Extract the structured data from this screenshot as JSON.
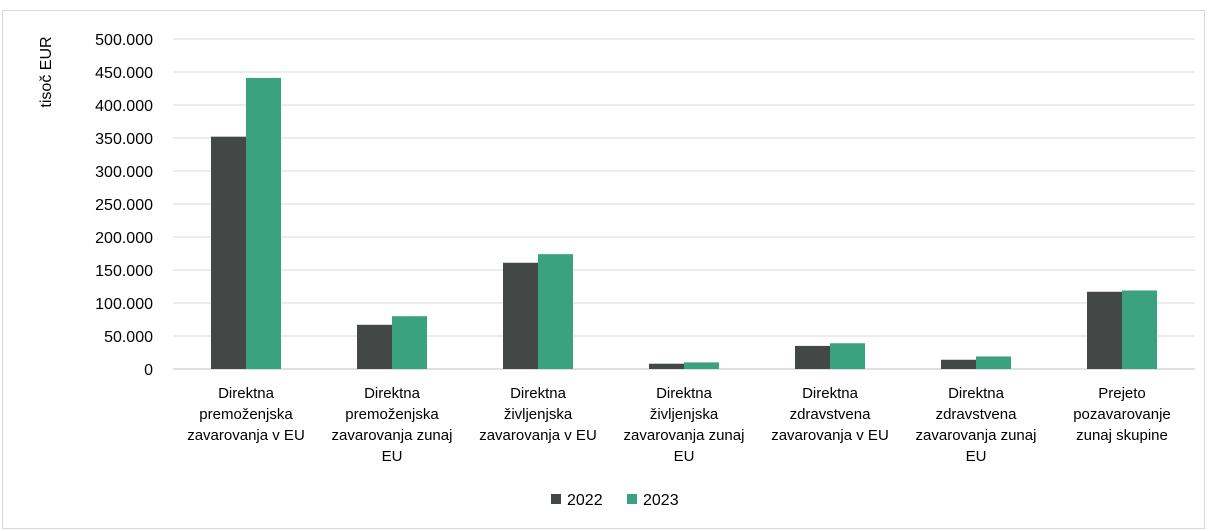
{
  "chart_data": {
    "type": "bar",
    "ylabel": "tisoč EUR",
    "xlabel": "",
    "ylim": [
      0,
      500000
    ],
    "y_ticks": [
      0,
      50000,
      100000,
      150000,
      200000,
      250000,
      300000,
      350000,
      400000,
      450000,
      500000
    ],
    "y_tick_labels": [
      "0",
      "50.000",
      "100.000",
      "150.000",
      "200.000",
      "250.000",
      "300.000",
      "350.000",
      "400.000",
      "450.000",
      "500.000"
    ],
    "grid": true,
    "legend_position": "bottom",
    "categories": [
      [
        "Direktna",
        "premoženjska",
        "zavarovanja v EU"
      ],
      [
        "Direktna",
        "premoženjska",
        "zavarovanja zunaj",
        "EU"
      ],
      [
        "Direktna",
        "življenjska",
        "zavarovanja v EU"
      ],
      [
        "Direktna",
        "življenjska",
        "zavarovanja zunaj",
        "EU"
      ],
      [
        "Direktna",
        "zdravstvena",
        "zavarovanja v EU"
      ],
      [
        "Direktna",
        "zdravstvena",
        "zavarovanja zunaj",
        "EU"
      ],
      [
        "Prejeto",
        "pozavarovanje",
        "zunaj skupine"
      ]
    ],
    "series": [
      {
        "name": "2022",
        "color": "#434846",
        "values": [
          352000,
          67000,
          161000,
          8000,
          35000,
          14000,
          117000
        ]
      },
      {
        "name": "2023",
        "color": "#3ba27f",
        "values": [
          441000,
          80000,
          174000,
          10000,
          39000,
          19000,
          119000
        ]
      }
    ]
  }
}
